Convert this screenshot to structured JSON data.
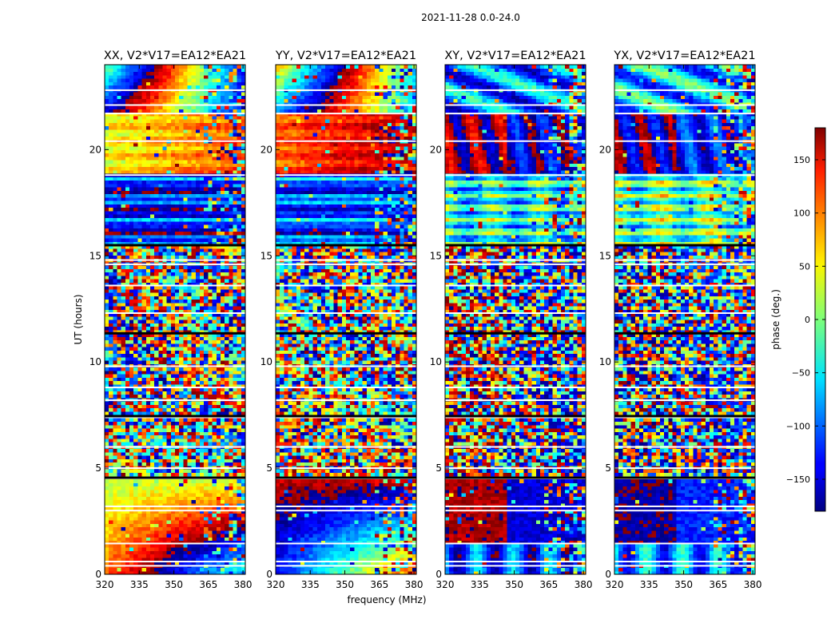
{
  "chart_data": {
    "type": "heatmap",
    "suptitle": "2021-11-28 0.0-24.0",
    "xlabel": "frequency (MHz)",
    "ylabel": "UT (hours)",
    "xlim": [
      320,
      381
    ],
    "ylim": [
      0,
      24
    ],
    "xticks": [
      320,
      335,
      350,
      365,
      380
    ],
    "yticks": [
      0,
      5,
      10,
      15,
      20
    ],
    "panels": [
      {
        "title": "XX, V2*V17=EA12*EA21",
        "pol": "XX"
      },
      {
        "title": "YY, V2*V17=EA12*EA21",
        "pol": "YY"
      },
      {
        "title": "XY, V2*V17=EA12*EA21",
        "pol": "XY"
      },
      {
        "title": "YX, V2*V17=EA12*EA21",
        "pol": "YX"
      }
    ],
    "colorbar": {
      "label": "phase (deg.)",
      "range": [
        -180,
        180
      ],
      "ticks": [
        150,
        100,
        50,
        0,
        -50,
        -100,
        -150
      ],
      "tick_labels": [
        "150",
        "100",
        "50",
        "0",
        "−50",
        "−100",
        "−150"
      ],
      "colormap": "jet"
    },
    "gap_hours": [
      4.55,
      7.45,
      11.35,
      15.5
    ],
    "flag_hours": [
      0.4,
      0.6,
      1.45,
      3.0,
      3.2,
      5.0,
      6.0,
      8.2,
      8.8,
      9.8,
      12.3,
      13.6,
      14.6,
      14.8,
      18.8,
      20.4,
      21.7,
      22.1,
      22.8
    ]
  }
}
